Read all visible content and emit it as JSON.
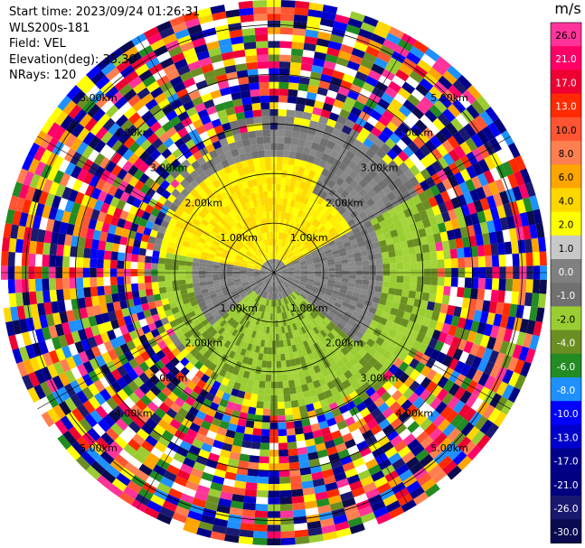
{
  "info": {
    "start_time": "Start time: 2023/09/24 01:26:31",
    "station": "WLS200s-181",
    "field": "Field: VEL",
    "elevation": "Elevation(deg): 35.30",
    "nrays": "NRays: 120"
  },
  "chart_data": {
    "type": "heatmap",
    "subtype": "polar-ppi",
    "range_ring_labels": [
      "1.00km",
      "2.00km",
      "3.00km",
      "4.00km",
      "5.00km"
    ],
    "range_rings_km": [
      1,
      2,
      3,
      4,
      5
    ],
    "spokes_deg": [
      0,
      30,
      60,
      90,
      120,
      150,
      180,
      210,
      240,
      270,
      300,
      330
    ],
    "max_range_km": 5.5,
    "n_rays": 120,
    "colorbar": {
      "unit": "m/s",
      "tick_labels": [
        "26.0",
        "21.0",
        "17.0",
        "13.0",
        "10.0",
        "8.0",
        "6.0",
        "4.0",
        "2.0",
        "1.0",
        "0.0",
        "-1.0",
        "-2.0",
        "-4.0",
        "-6.0",
        "-8.0",
        "-10.0",
        "-13.0",
        "-17.0",
        "-21.0",
        "-26.0",
        "-30.0"
      ],
      "colors": [
        "#ff3399",
        "#ff0066",
        "#ee0033",
        "#ff2a00",
        "#ff5533",
        "#ff7f50",
        "#ffa500",
        "#ffd700",
        "#ffff00",
        "#c8c8c8",
        "#808080",
        "#707070",
        "#9acd32",
        "#6b8e23",
        "#228b22",
        "#1e90ff",
        "#0000ff",
        "#0000cd",
        "#00008b",
        "#000080",
        "#191970",
        "#0a0a50"
      ]
    }
  }
}
